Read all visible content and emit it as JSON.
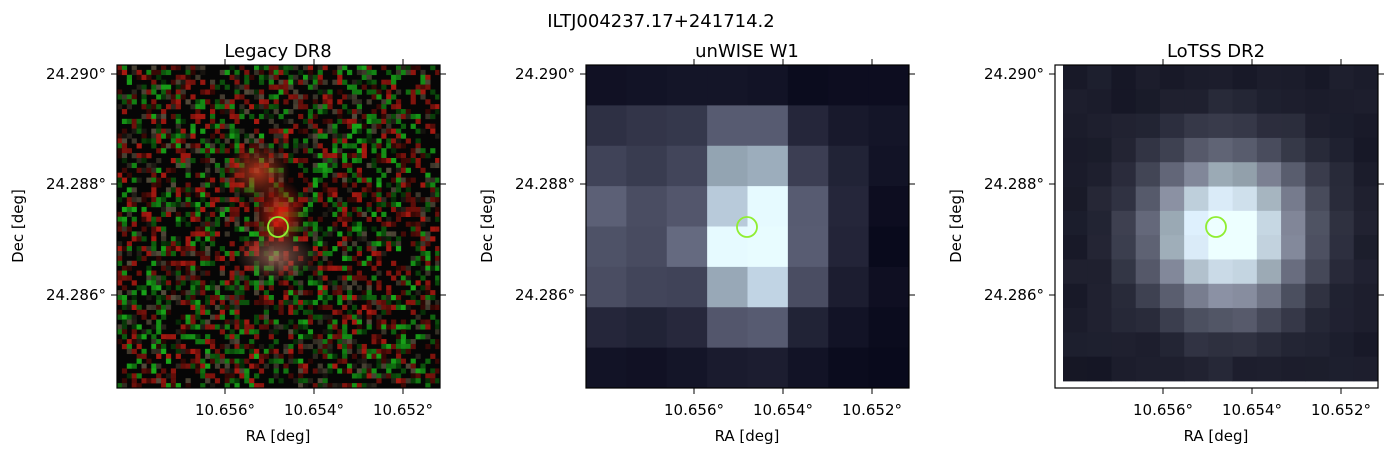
{
  "figure": {
    "title": "ILTJ004237.17+241714.2"
  },
  "axes_text": {
    "xlabel": "RA [deg]",
    "ylabel": "Dec [deg]",
    "x_ticks": [
      "10.656°",
      "10.654°",
      "10.652°"
    ],
    "y_ticks": [
      "24.290°",
      "24.288°",
      "24.286°"
    ]
  },
  "panels": [
    {
      "title": "Legacy DR8",
      "image": "noisy-rgb-optical-cutout"
    },
    {
      "title": "unWISE W1",
      "image": "grayscale-infrared-cutout"
    },
    {
      "title": "LoTSS DR2",
      "image": "grayscale-radio-cutout"
    }
  ],
  "marker": {
    "shape": "circle",
    "color": "#90ee32"
  },
  "colors": {
    "gray_bright": "#f4fbfa",
    "gray_teal": "#a9cccc",
    "gray_dark": "#0c0c12"
  }
}
